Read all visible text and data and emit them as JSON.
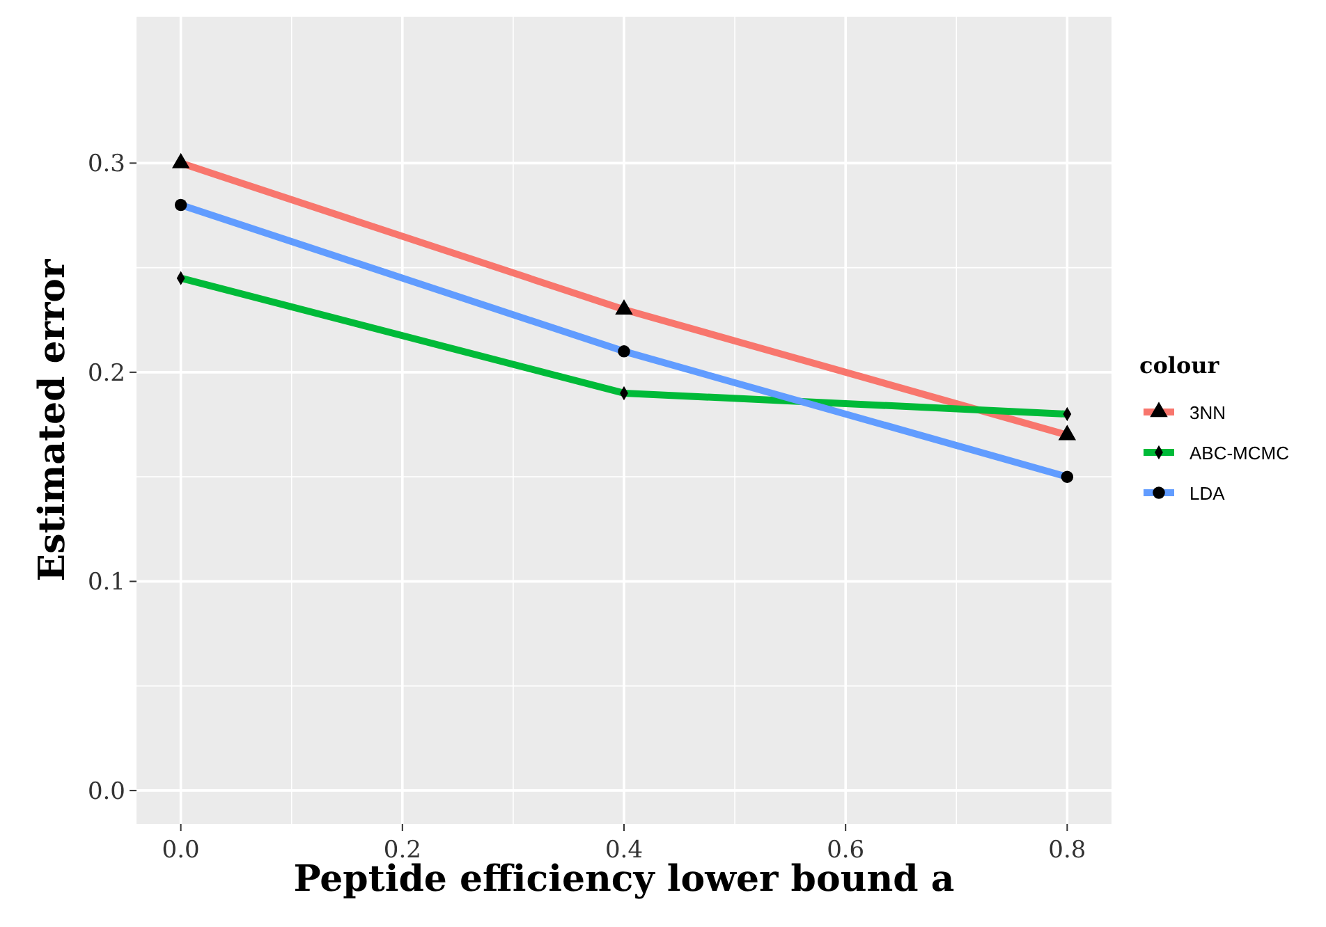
{
  "chart_data": {
    "type": "line",
    "xlabel": "Peptide efficiency lower bound a",
    "ylabel": "Estimated error",
    "legend_title": "colour",
    "legend": "right",
    "grid": true,
    "x": [
      0,
      0.4,
      0.8
    ],
    "xlim": [
      -0.04,
      0.84
    ],
    "xticks": [
      {
        "value": 0,
        "label": "0.0"
      },
      0.2,
      0.4,
      0.6,
      0.8
    ],
    "ylim": [
      -0.016,
      0.37
    ],
    "yticks": [
      {
        "value": 0,
        "label": "0.0"
      },
      0.1,
      0.2,
      0.3
    ],
    "series": [
      {
        "name": "3NN",
        "color": "#f8766d",
        "values": [
          0.3,
          0.23,
          0.17
        ],
        "marker": "triangle"
      },
      {
        "name": "ABC-MCMC",
        "color": "#00ba38",
        "values": [
          0.245,
          0.19,
          0.18
        ],
        "marker": "diamond"
      },
      {
        "name": "LDA",
        "color": "#619cff",
        "values": [
          0.28,
          0.21,
          0.15
        ],
        "marker": "circle"
      }
    ]
  }
}
